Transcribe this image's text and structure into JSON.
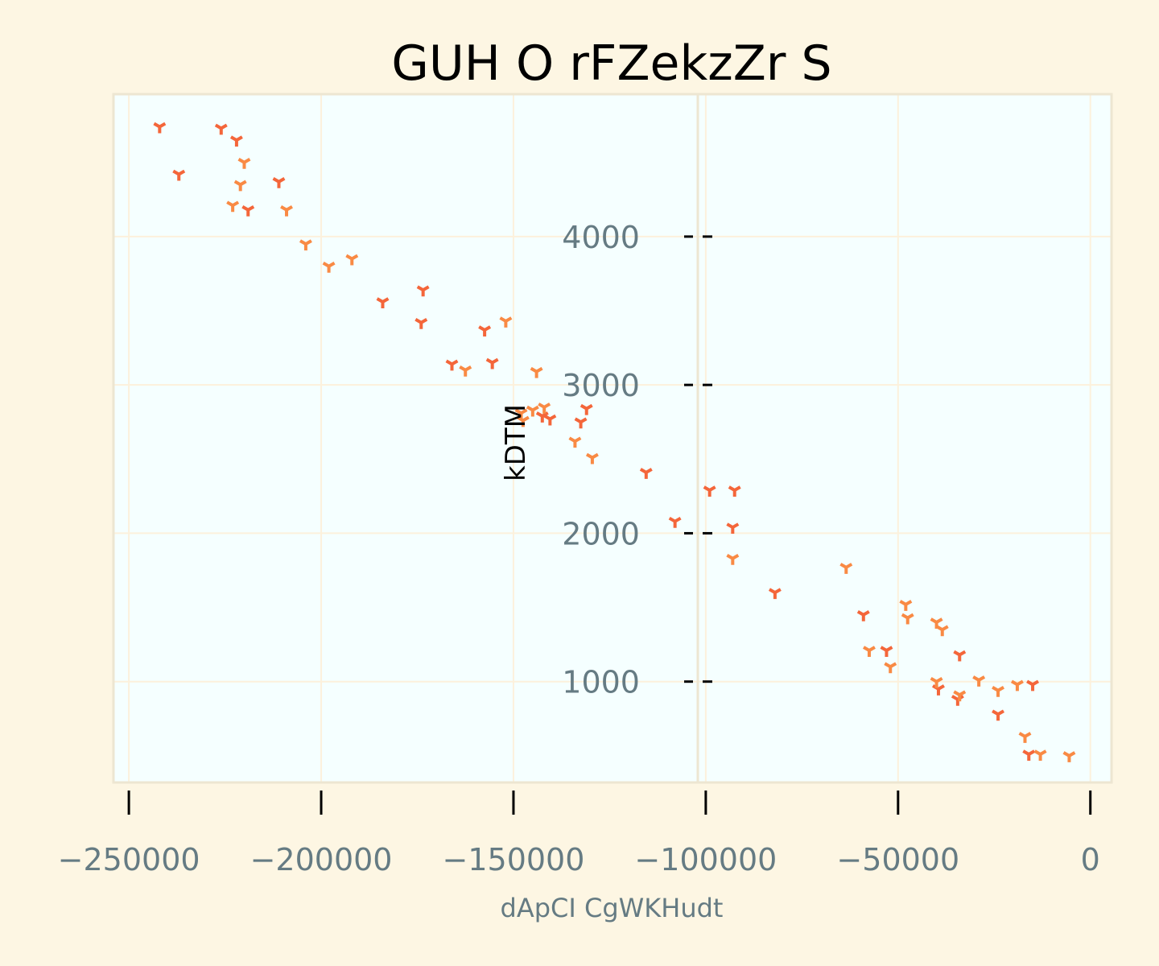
{
  "chart_data": {
    "type": "scatter",
    "title": "GUH O rFZekzZr S",
    "xlabel": "dApCI CgWKHudt",
    "ylabel": "kDTM",
    "xlim": [
      -254000,
      5500
    ],
    "ylim": [
      320,
      4960
    ],
    "x_ticks": [
      -250000,
      -200000,
      -150000,
      -100000,
      -50000,
      0
    ],
    "x_tick_labels": [
      "−250000",
      "−200000",
      "−150000",
      "−100000",
      "−50000",
      "0"
    ],
    "y_ticks": [
      1000,
      2000,
      3000,
      4000
    ],
    "y_tick_labels": [
      "1000",
      "2000",
      "3000",
      "4000"
    ],
    "grid": true,
    "colors": {
      "dark": "#f4663a",
      "light": "#f98a44",
      "plot_bg": "#f5ffff",
      "page_bg": "#fdf6e3",
      "grid": "#fcf1dc",
      "tick_text": "#657b83"
    },
    "series": [
      {
        "color": "#f4663a",
        "points": [
          [
            -242000,
            4740
          ],
          [
            -237000,
            4420
          ],
          [
            -226000,
            4730
          ],
          [
            -222000,
            4650
          ],
          [
            -219000,
            4180
          ],
          [
            -211000,
            4370
          ],
          [
            -173500,
            3640
          ],
          [
            -184000,
            3560
          ],
          [
            -174000,
            3420
          ],
          [
            -157500,
            3370
          ],
          [
            -166000,
            3140
          ],
          [
            -155500,
            3150
          ],
          [
            -140500,
            2770
          ],
          [
            -142500,
            2790
          ],
          [
            -131000,
            2840
          ],
          [
            -132500,
            2750
          ],
          [
            -115500,
            2410
          ],
          [
            -99000,
            2290
          ],
          [
            -92500,
            2290
          ],
          [
            -93000,
            2040
          ],
          [
            -108000,
            2080
          ],
          [
            -82000,
            1600
          ],
          [
            -59000,
            1450
          ],
          [
            -53000,
            1210
          ],
          [
            -34000,
            1180
          ],
          [
            -39500,
            950
          ],
          [
            -34500,
            880
          ],
          [
            -24000,
            780
          ],
          [
            -16000,
            510
          ],
          [
            -15000,
            980
          ]
        ]
      },
      {
        "color": "#f98a44",
        "points": [
          [
            -220000,
            4500
          ],
          [
            -221000,
            4350
          ],
          [
            -223000,
            4210
          ],
          [
            -209000,
            4180
          ],
          [
            -204000,
            3950
          ],
          [
            -198000,
            3800
          ],
          [
            -192000,
            3850
          ],
          [
            -152000,
            3430
          ],
          [
            -162500,
            3100
          ],
          [
            -144000,
            3090
          ],
          [
            -145000,
            2830
          ],
          [
            -142000,
            2850
          ],
          [
            -148000,
            2810
          ],
          [
            -147500,
            2760
          ],
          [
            -134000,
            2620
          ],
          [
            -129500,
            2510
          ],
          [
            -93000,
            1830
          ],
          [
            -63500,
            1770
          ],
          [
            -48000,
            1520
          ],
          [
            -47500,
            1430
          ],
          [
            -40000,
            1400
          ],
          [
            -38500,
            1350
          ],
          [
            -57500,
            1210
          ],
          [
            -52000,
            1100
          ],
          [
            -40000,
            1000
          ],
          [
            -34000,
            910
          ],
          [
            -29000,
            1010
          ],
          [
            -24000,
            940
          ],
          [
            -19000,
            980
          ],
          [
            -17000,
            630
          ],
          [
            -13000,
            510
          ],
          [
            -5500,
            500
          ]
        ]
      }
    ]
  }
}
